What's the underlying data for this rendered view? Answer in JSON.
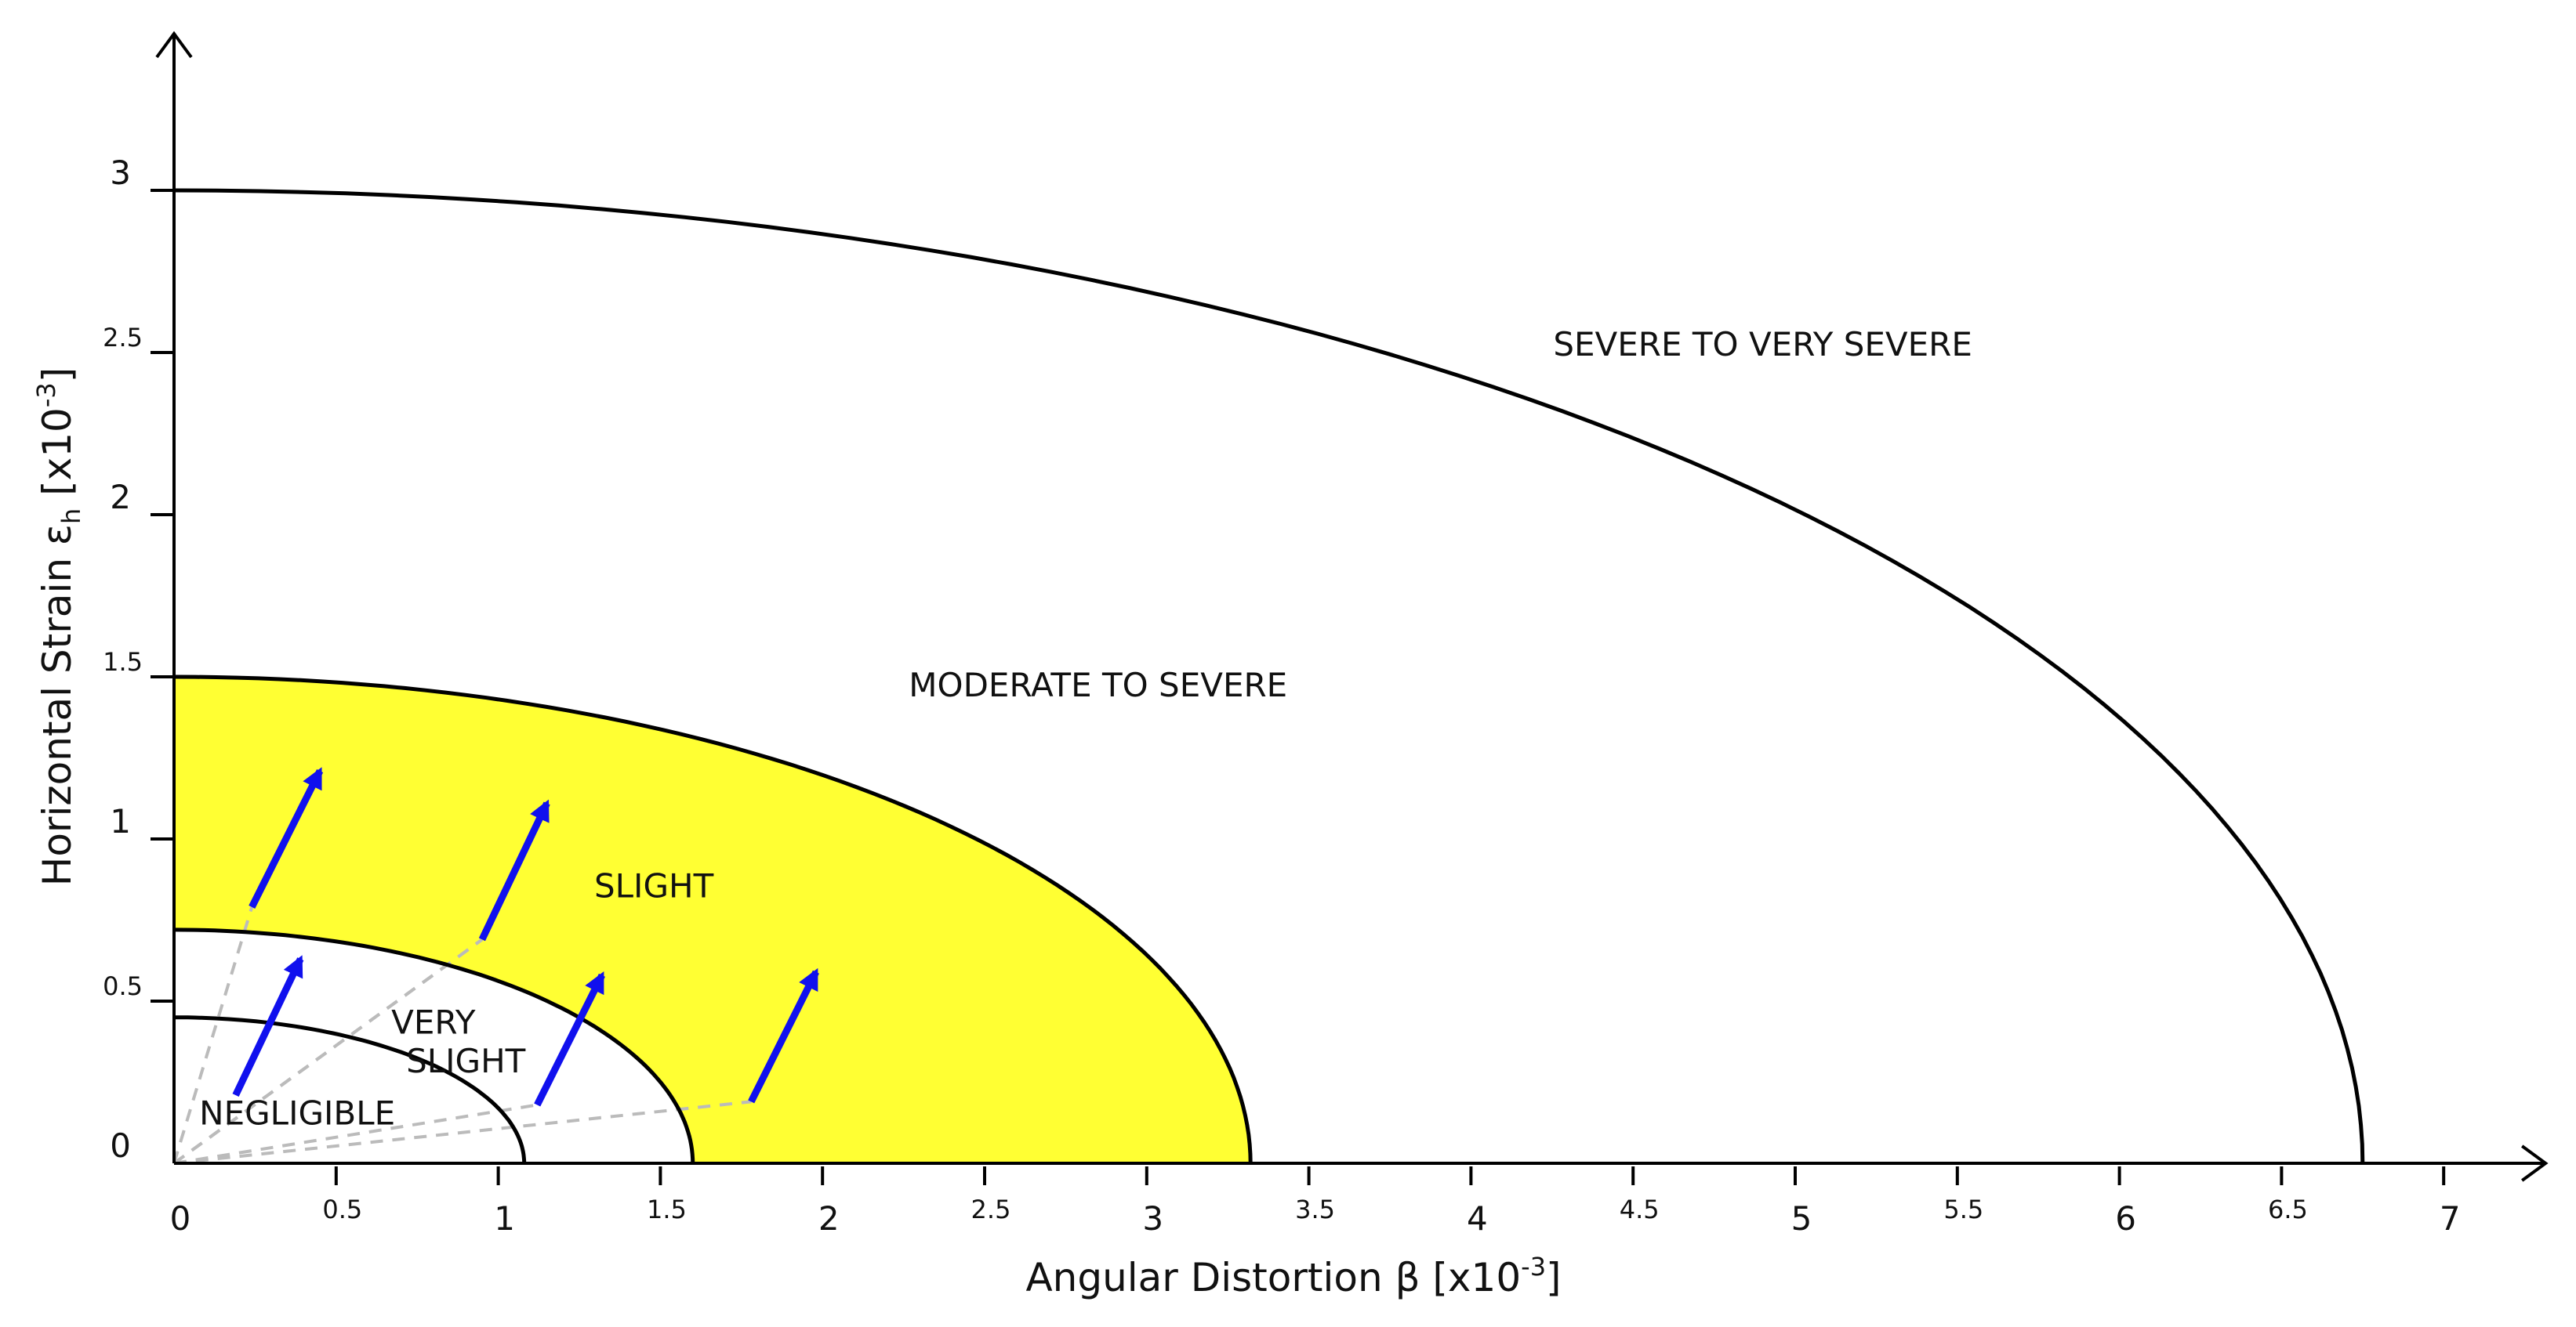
{
  "chart_data": {
    "type": "line",
    "title": "",
    "xlabel_parts": {
      "main": "Angular Distortion β [x10",
      "sup": "-3",
      "end": "]"
    },
    "ylabel_parts": {
      "main": "Horizontal Strain ε",
      "sub": "h",
      "mid": " [x10",
      "sup": "-3",
      "end": "]"
    },
    "xlim": [
      0,
      7
    ],
    "ylim": [
      0,
      3
    ],
    "x_ticks": [
      {
        "value": 0,
        "label": "0",
        "major": true
      },
      {
        "value": 0.5,
        "label": "0.5",
        "major": false
      },
      {
        "value": 1,
        "label": "1",
        "major": true
      },
      {
        "value": 1.5,
        "label": "1.5",
        "major": false
      },
      {
        "value": 2,
        "label": "2",
        "major": true
      },
      {
        "value": 2.5,
        "label": "2.5",
        "major": false
      },
      {
        "value": 3,
        "label": "3",
        "major": true
      },
      {
        "value": 3.5,
        "label": "3.5",
        "major": false
      },
      {
        "value": 4,
        "label": "4",
        "major": true
      },
      {
        "value": 4.5,
        "label": "4.5",
        "major": false
      },
      {
        "value": 5,
        "label": "5",
        "major": true
      },
      {
        "value": 5.5,
        "label": "5.5",
        "major": false
      },
      {
        "value": 6,
        "label": "6",
        "major": true
      },
      {
        "value": 6.5,
        "label": "6.5",
        "major": false
      },
      {
        "value": 7,
        "label": "7",
        "major": true
      }
    ],
    "y_ticks": [
      {
        "value": 0,
        "label": "0",
        "major": true
      },
      {
        "value": 0.5,
        "label": "0.5",
        "major": false
      },
      {
        "value": 1,
        "label": "1",
        "major": true
      },
      {
        "value": 1.5,
        "label": "1.5",
        "major": false
      },
      {
        "value": 2,
        "label": "2",
        "major": true
      },
      {
        "value": 2.5,
        "label": "2.5",
        "major": false
      },
      {
        "value": 3,
        "label": "3",
        "major": true
      }
    ],
    "boundaries": [
      {
        "id": "negligible-limit",
        "x_intercept": 1.08,
        "y_intercept": 0.45
      },
      {
        "id": "very-slight-limit",
        "x_intercept": 1.6,
        "y_intercept": 0.72
      },
      {
        "id": "slight-limit",
        "x_intercept": 3.32,
        "y_intercept": 1.5
      },
      {
        "id": "moderate-limit",
        "x_intercept": 6.75,
        "y_intercept": 3.0
      }
    ],
    "highlight_zone": {
      "from": "very-slight-limit",
      "to": "slight-limit",
      "color": "#ffff33"
    },
    "zones": [
      {
        "label": "NEGLIGIBLE",
        "x": 0.38,
        "y": 0.12
      },
      {
        "label": "VERY",
        "x": 0.8,
        "y": 0.4
      },
      {
        "label": "SLIGHT",
        "x": 0.9,
        "y": 0.28
      },
      {
        "label": "SLIGHT",
        "x": 1.48,
        "y": 0.82
      },
      {
        "label": "MODERATE TO SEVERE",
        "x": 2.85,
        "y": 1.44
      },
      {
        "label": "SEVERE TO VERY SEVERE",
        "x": 4.9,
        "y": 2.49
      }
    ],
    "dashed_rays": [
      {
        "x": 0.24,
        "y": 0.79
      },
      {
        "x": 0.95,
        "y": 0.69
      },
      {
        "x": 0.95,
        "y": 0.69
      },
      {
        "x": 1.78,
        "y": 0.19
      },
      {
        "x": 1.12,
        "y": 0.18
      }
    ],
    "arrows": [
      {
        "from": [
          0.24,
          0.79
        ],
        "to": [
          0.45,
          1.21
        ]
      },
      {
        "from": [
          0.95,
          0.69
        ],
        "to": [
          1.15,
          1.11
        ]
      },
      {
        "from": [
          0.19,
          0.21
        ],
        "to": [
          0.39,
          0.63
        ]
      },
      {
        "from": [
          1.12,
          0.18
        ],
        "to": [
          1.32,
          0.58
        ]
      },
      {
        "from": [
          1.78,
          0.19
        ],
        "to": [
          1.98,
          0.59
        ]
      }
    ],
    "colors": {
      "curve": "#000000",
      "arrow": "#1010ee",
      "ray": "#bbbbbb",
      "highlight": "#ffff33"
    }
  }
}
